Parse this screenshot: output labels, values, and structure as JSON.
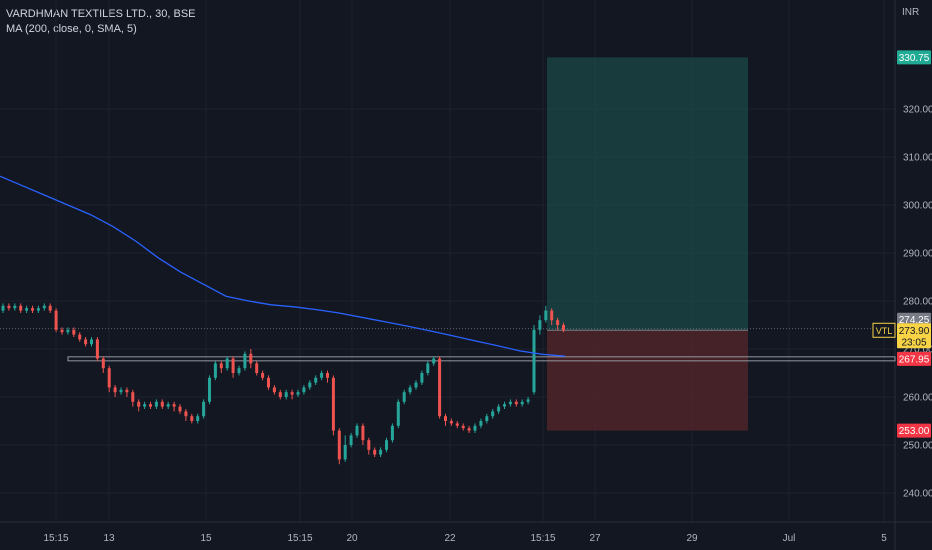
{
  "legend": {
    "title": "VARDHMAN TEXTILES LTD., 30, BSE",
    "ma": "MA (200, close, 0, SMA, 5)"
  },
  "chart_data": {
    "type": "candlestick",
    "currency": "INR",
    "y_ticks": [
      240,
      250,
      260,
      270,
      280,
      290,
      300,
      310,
      320
    ],
    "ylim": [
      236,
      342
    ],
    "x_ticks": [
      "15:15",
      "13",
      "15",
      "15:15",
      "20",
      "22",
      "15:15",
      "27",
      "29",
      "Jul",
      "5"
    ],
    "grid": true,
    "price_labels": {
      "target": "330.75",
      "high": "274.25",
      "symbol": "VTL",
      "last": "273.90",
      "countdown": "23:05",
      "support": "267.95",
      "stop": "253.00"
    },
    "position": {
      "entry": 273.9,
      "target": 330.75,
      "stop": 253.0
    },
    "support_level": 267.95,
    "ma_values": [
      306,
      304,
      302,
      300,
      298,
      295.5,
      292.5,
      289,
      286,
      283.5,
      281,
      280,
      279.2,
      278.8,
      278.2,
      277.5,
      276.6,
      275.7,
      274.8,
      273.8,
      272.8,
      271.7,
      270.7,
      269.6,
      268.9,
      268.5
    ],
    "candles": [
      [
        278,
        279,
        277.5,
        279.5
      ],
      [
        279,
        278.5,
        278,
        279.5
      ],
      [
        278.5,
        279,
        278,
        279.5
      ],
      [
        279,
        278,
        277.5,
        279.5
      ],
      [
        278,
        278.5,
        277.5,
        279
      ],
      [
        278.5,
        278,
        277.5,
        279
      ],
      [
        278,
        278.5,
        277.5,
        279
      ],
      [
        278.5,
        279,
        278,
        279.5
      ],
      [
        279,
        278,
        277.5,
        279.5
      ],
      [
        278,
        274,
        273.5,
        278.5
      ],
      [
        274,
        273.5,
        273,
        274.5
      ],
      [
        273.5,
        274,
        273,
        274.5
      ],
      [
        274,
        273,
        272.5,
        274.5
      ],
      [
        273,
        272,
        271.5,
        273.5
      ],
      [
        272,
        271,
        270.5,
        272.5
      ],
      [
        271,
        272,
        270.5,
        272.5
      ],
      [
        272,
        268,
        267.5,
        272.5
      ],
      [
        268,
        266,
        265,
        268.5
      ],
      [
        266,
        262,
        261,
        266.5
      ],
      [
        262,
        261,
        260,
        262.5
      ],
      [
        261,
        261.5,
        260.5,
        262
      ],
      [
        261.5,
        261,
        260,
        262
      ],
      [
        261,
        259,
        258,
        261.5
      ],
      [
        259,
        258,
        257,
        259.5
      ],
      [
        258,
        258.5,
        257.5,
        259
      ],
      [
        258.5,
        258,
        257.5,
        259
      ],
      [
        258,
        259,
        257.5,
        259.5
      ],
      [
        259,
        258,
        257.5,
        259.5
      ],
      [
        258,
        258.5,
        257.5,
        259
      ],
      [
        258.5,
        258,
        257,
        259
      ],
      [
        258,
        257,
        256.5,
        258.5
      ],
      [
        257,
        256,
        255,
        257.5
      ],
      [
        256,
        255,
        254.5,
        256.5
      ],
      [
        255,
        256,
        254.5,
        256.5
      ],
      [
        256,
        259,
        255.5,
        259.5
      ],
      [
        259,
        264,
        258.5,
        264.5
      ],
      [
        264,
        267,
        263.5,
        267.5
      ],
      [
        267,
        266,
        265,
        267.5
      ],
      [
        266,
        268,
        265.5,
        268.5
      ],
      [
        268,
        265,
        264,
        268.5
      ],
      [
        265,
        266,
        264.5,
        266.5
      ],
      [
        266,
        269,
        265.5,
        269.5
      ],
      [
        269,
        267,
        266,
        270
      ],
      [
        267,
        265,
        264.5,
        267.5
      ],
      [
        265,
        264,
        263.5,
        265.5
      ],
      [
        264,
        262,
        261.5,
        264.5
      ],
      [
        262,
        261,
        260.5,
        262.5
      ],
      [
        261,
        260,
        259.5,
        261.5
      ],
      [
        260,
        261,
        259.5,
        261.5
      ],
      [
        261,
        260.5,
        259.5,
        261.5
      ],
      [
        260.5,
        261,
        260,
        261.5
      ],
      [
        261,
        262,
        260.5,
        262.5
      ],
      [
        262,
        263,
        261.5,
        263.5
      ],
      [
        263,
        264,
        262.5,
        264.5
      ],
      [
        264,
        265,
        263.5,
        265.5
      ],
      [
        265,
        264,
        263,
        265.5
      ],
      [
        264,
        253,
        252,
        264.5
      ],
      [
        253,
        247,
        246,
        253.5
      ],
      [
        247,
        250,
        246.5,
        252
      ],
      [
        250,
        252,
        249.5,
        252.5
      ],
      [
        252,
        254,
        251.5,
        254.5
      ],
      [
        254,
        251,
        250,
        254.5
      ],
      [
        251,
        249,
        248,
        251.5
      ],
      [
        249,
        248,
        247.5,
        249.5
      ],
      [
        248,
        249,
        247.5,
        249.5
      ],
      [
        249,
        251,
        248.5,
        251.5
      ],
      [
        251,
        254,
        250.5,
        254.5
      ],
      [
        254,
        259,
        253.5,
        259.5
      ],
      [
        259,
        261,
        258.5,
        261.5
      ],
      [
        261,
        262,
        260.5,
        262.5
      ],
      [
        262,
        263,
        261.5,
        263.5
      ],
      [
        263,
        265,
        262.5,
        265.5
      ],
      [
        265,
        267,
        264.5,
        267.5
      ],
      [
        267,
        268,
        266.5,
        268.5
      ],
      [
        268,
        256,
        255.5,
        268.5
      ],
      [
        256,
        255,
        254,
        256.5
      ],
      [
        255,
        254.5,
        254,
        255.5
      ],
      [
        254.5,
        254,
        253.5,
        255
      ],
      [
        254,
        253.5,
        253,
        254.5
      ],
      [
        253.5,
        253,
        252.5,
        254
      ],
      [
        253,
        254,
        252.5,
        254.5
      ],
      [
        254,
        255,
        253.5,
        255.5
      ],
      [
        255,
        256,
        254.5,
        256.5
      ],
      [
        256,
        257,
        255.5,
        257.5
      ],
      [
        257,
        258,
        256.5,
        258.5
      ],
      [
        258,
        258.5,
        257.5,
        259
      ],
      [
        258.5,
        259,
        258,
        259.5
      ],
      [
        259,
        258.5,
        258,
        259.5
      ],
      [
        258.5,
        259,
        258,
        259.5
      ],
      [
        259,
        259.5,
        258.5,
        260
      ],
      [
        261,
        274,
        260.5,
        275
      ],
      [
        274,
        276,
        273,
        277
      ],
      [
        276,
        278,
        275.5,
        279
      ],
      [
        278,
        276,
        275,
        278.5
      ],
      [
        276,
        275,
        274,
        276.5
      ],
      [
        275,
        273.9,
        273.5,
        275.5
      ]
    ]
  }
}
